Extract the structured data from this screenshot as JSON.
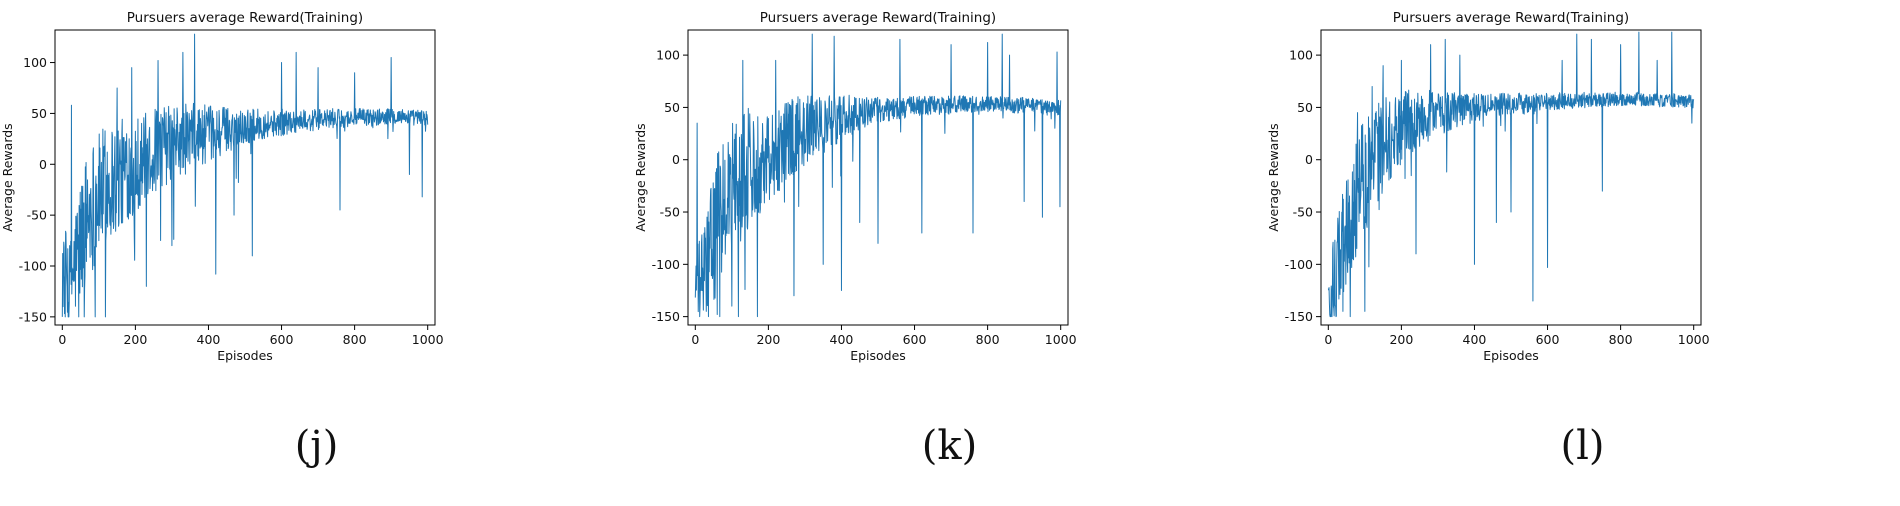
{
  "chart_data": [
    {
      "type": "line",
      "caption": "(j)",
      "title": "Pursuers average Reward(Training)",
      "xlabel": "Episodes",
      "ylabel": "Average Rewards",
      "xlim": [
        -20,
        1020
      ],
      "ylim": [
        -158,
        132
      ],
      "xticks": [
        0,
        200,
        400,
        600,
        800,
        1000
      ],
      "yticks": [
        -150,
        -100,
        -50,
        0,
        50,
        100
      ],
      "grid": false,
      "color": "#1f77b4",
      "series": [
        {
          "x": [
            0,
            20,
            40,
            60,
            80,
            100,
            120,
            140,
            160,
            180,
            200,
            220,
            240,
            260,
            280,
            300,
            320,
            340,
            360,
            380,
            400,
            420,
            440,
            460,
            480,
            500,
            520,
            540,
            560,
            580,
            600,
            620,
            640,
            660,
            680,
            700,
            720,
            740,
            760,
            780,
            800,
            820,
            840,
            860,
            880,
            900,
            920,
            940,
            960,
            980,
            1000
          ],
          "y": [
            -100,
            -120,
            -90,
            -60,
            -40,
            -30,
            -20,
            -15,
            -10,
            -5,
            0,
            5,
            10,
            15,
            18,
            20,
            22,
            25,
            27,
            29,
            30,
            32,
            33,
            35,
            36,
            37,
            38,
            39,
            40,
            40,
            41,
            42,
            42,
            43,
            43,
            44,
            44,
            45,
            45,
            45,
            46,
            46,
            46,
            46,
            47,
            47,
            47,
            47,
            46,
            46,
            45
          ],
          "spread": [
            45,
            40,
            55,
            60,
            60,
            55,
            55,
            55,
            50,
            45,
            45,
            40,
            40,
            38,
            36,
            35,
            34,
            32,
            30,
            28,
            25,
            24,
            22,
            20,
            18,
            16,
            15,
            14,
            13,
            12,
            12,
            11,
            10,
            10,
            10,
            9,
            9,
            9,
            8,
            8,
            8,
            8,
            8,
            8,
            7,
            7,
            7,
            7,
            7,
            7,
            7
          ],
          "spikes": [
            [
              8,
              -150
            ],
            [
              25,
              58
            ],
            [
              45,
              -150
            ],
            [
              90,
              -150
            ],
            [
              150,
              75
            ],
            [
              190,
              95
            ],
            [
              230,
              -120
            ],
            [
              262,
              102
            ],
            [
              300,
              -80
            ],
            [
              330,
              110
            ],
            [
              362,
              128
            ],
            [
              420,
              -108
            ],
            [
              470,
              -50
            ],
            [
              520,
              -90
            ],
            [
              600,
              100
            ],
            [
              640,
              110
            ],
            [
              700,
              95
            ],
            [
              760,
              -45
            ],
            [
              800,
              90
            ],
            [
              900,
              105
            ],
            [
              950,
              -10
            ],
            [
              985,
              -32
            ]
          ]
        }
      ]
    },
    {
      "type": "line",
      "caption": "(k)",
      "title": "Pursuers average Reward(Training)",
      "xlabel": "Episodes",
      "ylabel": "Average Rewards",
      "xlim": [
        -20,
        1020
      ],
      "ylim": [
        -158,
        124
      ],
      "xticks": [
        0,
        200,
        400,
        600,
        800,
        1000
      ],
      "yticks": [
        -150,
        -100,
        -50,
        0,
        50,
        100
      ],
      "grid": false,
      "color": "#1f77b4",
      "series": [
        {
          "x": [
            0,
            20,
            40,
            60,
            80,
            100,
            120,
            140,
            160,
            180,
            200,
            220,
            240,
            260,
            280,
            300,
            320,
            340,
            360,
            380,
            400,
            420,
            440,
            460,
            480,
            500,
            520,
            540,
            560,
            580,
            600,
            620,
            640,
            660,
            680,
            700,
            720,
            740,
            760,
            780,
            800,
            820,
            840,
            860,
            880,
            900,
            920,
            940,
            960,
            980,
            1000
          ],
          "y": [
            -120,
            -110,
            -90,
            -60,
            -40,
            -25,
            -15,
            -10,
            -5,
            0,
            5,
            10,
            15,
            20,
            25,
            28,
            30,
            33,
            35,
            38,
            40,
            42,
            44,
            45,
            46,
            47,
            48,
            49,
            50,
            50,
            51,
            51,
            52,
            52,
            52,
            52,
            53,
            53,
            53,
            53,
            53,
            53,
            53,
            52,
            52,
            52,
            51,
            51,
            50,
            50,
            50
          ],
          "spread": [
            30,
            40,
            55,
            60,
            60,
            60,
            60,
            55,
            50,
            45,
            42,
            40,
            38,
            35,
            32,
            30,
            28,
            26,
            24,
            22,
            20,
            18,
            16,
            14,
            13,
            12,
            11,
            10,
            10,
            9,
            9,
            9,
            8,
            8,
            8,
            8,
            8,
            7,
            7,
            7,
            7,
            7,
            7,
            7,
            7,
            7,
            7,
            7,
            7,
            7,
            7
          ],
          "spikes": [
            [
              5,
              35
            ],
            [
              12,
              -150
            ],
            [
              30,
              -145
            ],
            [
              60,
              -148
            ],
            [
              100,
              -140
            ],
            [
              130,
              95
            ],
            [
              170,
              -150
            ],
            [
              220,
              95
            ],
            [
              270,
              -130
            ],
            [
              320,
              120
            ],
            [
              350,
              -100
            ],
            [
              380,
              118
            ],
            [
              400,
              -125
            ],
            [
              450,
              -60
            ],
            [
              500,
              -80
            ],
            [
              560,
              115
            ],
            [
              620,
              -70
            ],
            [
              700,
              110
            ],
            [
              760,
              -70
            ],
            [
              800,
              112
            ],
            [
              840,
              120
            ],
            [
              860,
              100
            ],
            [
              900,
              -40
            ],
            [
              950,
              -55
            ],
            [
              990,
              103
            ],
            [
              998,
              -45
            ]
          ]
        }
      ]
    },
    {
      "type": "line",
      "caption": "(l)",
      "title": "Pursuers average Reward(Training)",
      "xlabel": "Episodes",
      "ylabel": "Average Rewards",
      "xlim": [
        -20,
        1020
      ],
      "ylim": [
        -158,
        124
      ],
      "xticks": [
        0,
        200,
        400,
        600,
        800,
        1000
      ],
      "yticks": [
        -150,
        -100,
        -50,
        0,
        50,
        100
      ],
      "grid": false,
      "color": "#1f77b4",
      "series": [
        {
          "x": [
            0,
            20,
            40,
            60,
            80,
            100,
            120,
            140,
            160,
            180,
            200,
            220,
            240,
            260,
            280,
            300,
            320,
            340,
            360,
            380,
            400,
            420,
            440,
            460,
            480,
            500,
            520,
            540,
            560,
            580,
            600,
            620,
            640,
            660,
            680,
            700,
            720,
            740,
            760,
            780,
            800,
            820,
            840,
            860,
            880,
            900,
            920,
            940,
            960,
            980,
            1000
          ],
          "y": [
            -130,
            -110,
            -80,
            -50,
            -30,
            -15,
            0,
            10,
            18,
            25,
            30,
            34,
            38,
            40,
            42,
            44,
            45,
            47,
            48,
            49,
            50,
            51,
            52,
            52,
            53,
            53,
            54,
            54,
            55,
            55,
            55,
            56,
            56,
            56,
            57,
            57,
            57,
            57,
            57,
            58,
            58,
            58,
            58,
            58,
            58,
            57,
            57,
            57,
            56,
            56,
            55
          ],
          "spread": [
            25,
            40,
            50,
            55,
            55,
            50,
            48,
            45,
            40,
            36,
            32,
            30,
            28,
            25,
            22,
            20,
            18,
            16,
            15,
            14,
            13,
            12,
            11,
            10,
            10,
            9,
            9,
            9,
            8,
            8,
            8,
            8,
            7,
            7,
            7,
            7,
            7,
            6,
            6,
            6,
            6,
            6,
            6,
            6,
            6,
            6,
            6,
            6,
            6,
            6,
            6
          ],
          "spikes": [
            [
              5,
              -150
            ],
            [
              20,
              -140
            ],
            [
              40,
              -145
            ],
            [
              60,
              -150
            ],
            [
              80,
              45
            ],
            [
              100,
              -145
            ],
            [
              120,
              70
            ],
            [
              150,
              90
            ],
            [
              200,
              95
            ],
            [
              240,
              -90
            ],
            [
              280,
              110
            ],
            [
              320,
              115
            ],
            [
              360,
              100
            ],
            [
              400,
              -100
            ],
            [
              460,
              -60
            ],
            [
              500,
              -50
            ],
            [
              560,
              -135
            ],
            [
              600,
              -103
            ],
            [
              640,
              95
            ],
            [
              680,
              120
            ],
            [
              720,
              115
            ],
            [
              750,
              -30
            ],
            [
              800,
              110
            ],
            [
              850,
              122
            ],
            [
              900,
              95
            ],
            [
              940,
              122
            ],
            [
              995,
              35
            ]
          ]
        }
      ]
    }
  ]
}
